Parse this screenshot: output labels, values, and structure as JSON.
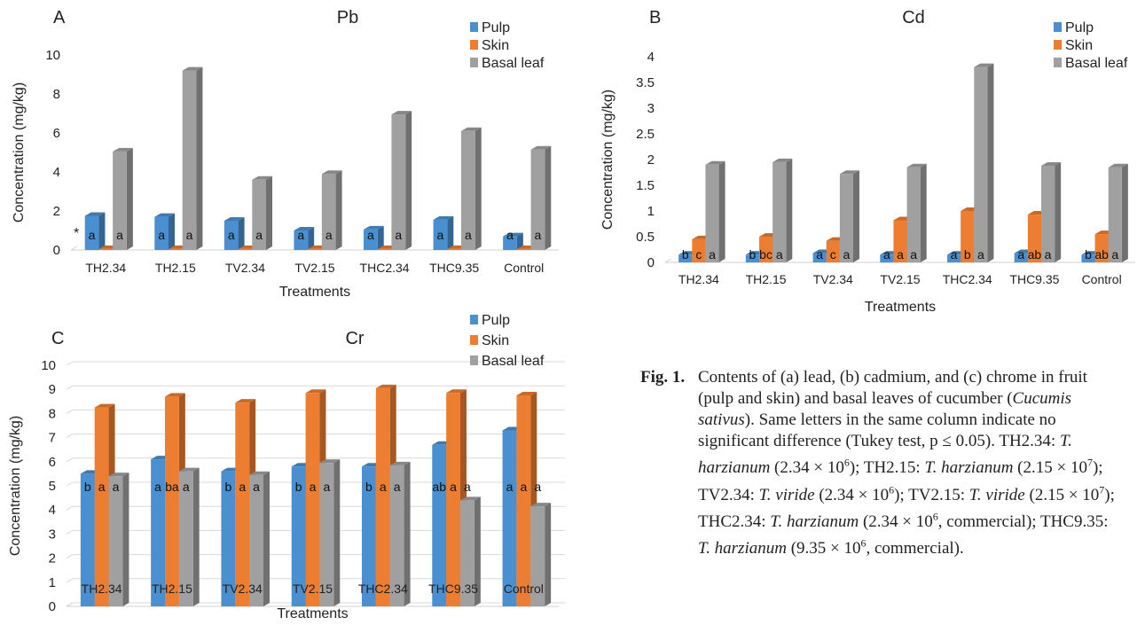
{
  "colors": {
    "pulp": "#4a8fd0",
    "skin": "#ed7d31",
    "basal": "#a0a0a0",
    "grid": "#d9d9d9"
  },
  "chart_data": [
    {
      "type": "bar",
      "panel": "A",
      "title": "Pb",
      "xlabel": "Treatments",
      "ylabel": "Concentration (mg/kg)",
      "categories": [
        "TH2.34",
        "TH2.15",
        "TV2.34",
        "TV2.15",
        "THC2.34",
        "THC9.35",
        "Control"
      ],
      "ylim": [
        0,
        10
      ],
      "yticks": [
        0,
        2,
        4,
        6,
        8,
        10
      ],
      "grid": false,
      "legend": "top-right",
      "annotation": "*",
      "series": [
        {
          "name": "Pulp",
          "values": [
            1.75,
            1.7,
            1.5,
            1.0,
            1.05,
            1.55,
            0.7
          ],
          "labels": [
            "a",
            "a",
            "a",
            "a",
            "a",
            "a",
            "a"
          ]
        },
        {
          "name": "Skin",
          "values": [
            0.05,
            0.05,
            0.05,
            0.05,
            0.05,
            0.05,
            0.05
          ],
          "labels": [
            "",
            "",
            "",
            "",
            "",
            "",
            ""
          ]
        },
        {
          "name": "Basal leaf",
          "values": [
            5.05,
            9.2,
            3.6,
            3.9,
            6.95,
            6.1,
            5.15
          ],
          "labels": [
            "a",
            "a",
            "a",
            "a",
            "a",
            "a",
            "a"
          ]
        }
      ]
    },
    {
      "type": "bar",
      "panel": "B",
      "title": "Cd",
      "xlabel": "Treatments",
      "ylabel": "Concentration (mg/kg)",
      "categories": [
        "TH2.34",
        "TH2.15",
        "TV2.34",
        "TV2.15",
        "THC2.34",
        "THC9.35",
        "Control"
      ],
      "ylim": [
        0,
        4
      ],
      "yticks": [
        0,
        0.5,
        1,
        1.5,
        2,
        2.5,
        3,
        3.5,
        4
      ],
      "grid": false,
      "legend": "top-right",
      "series": [
        {
          "name": "Pulp",
          "values": [
            0.15,
            0.15,
            0.18,
            0.15,
            0.15,
            0.18,
            0.15
          ],
          "labels": [
            "b",
            "b",
            "a",
            "a",
            "a",
            "a",
            "b"
          ]
        },
        {
          "name": "Skin",
          "values": [
            0.45,
            0.5,
            0.42,
            0.82,
            1.0,
            0.93,
            0.55
          ],
          "labels": [
            "c",
            "bc",
            "c",
            "a",
            "b",
            "ab",
            "ab"
          ]
        },
        {
          "name": "Basal leaf",
          "values": [
            1.9,
            1.95,
            1.72,
            1.85,
            3.8,
            1.88,
            1.85
          ],
          "labels": [
            "a",
            "a",
            "a",
            "a",
            "a",
            "a",
            "a"
          ]
        }
      ]
    },
    {
      "type": "bar",
      "panel": "C",
      "title": "Cr",
      "xlabel": "Treatments",
      "ylabel": "Concentration (mg/kg)",
      "categories": [
        "TH2.34",
        "TH2.15",
        "TV2.34",
        "TV2.15",
        "THC2.34",
        "THC9.35",
        "Control"
      ],
      "ylim": [
        0,
        10
      ],
      "yticks": [
        0,
        1,
        2,
        3,
        4,
        5,
        6,
        7,
        8,
        9,
        10
      ],
      "grid": true,
      "legend": "top-right",
      "series": [
        {
          "name": "Pulp",
          "values": [
            5.5,
            6.1,
            5.6,
            5.8,
            5.8,
            6.7,
            7.3
          ],
          "labels": [
            "b",
            "a",
            "b",
            "b",
            "b",
            "ab",
            "a"
          ]
        },
        {
          "name": "Skin",
          "values": [
            8.25,
            8.7,
            8.45,
            8.85,
            9.05,
            8.85,
            8.75
          ],
          "labels": [
            "a",
            "ba",
            "a",
            "a",
            "a",
            "a",
            "a"
          ]
        },
        {
          "name": "Basal leaf",
          "values": [
            5.4,
            5.6,
            5.45,
            5.95,
            5.85,
            4.4,
            4.15
          ],
          "labels": [
            "a",
            "a",
            "a",
            "a",
            "a",
            "a",
            "a"
          ]
        }
      ]
    }
  ],
  "caption": {
    "label": "Fig. 1.",
    "text": "Contents of (a) lead, (b) cadmium, and (c) chrome in fruit (pulp and skin) and basal leaves of cucumber (",
    "species": "Cucumis sativus",
    "text2": "). Same letters in the same column indicate no significant difference (Tukey test, p ≤ 0.05). TH2.34: ",
    "defs": [
      {
        "code": "TH2.34",
        "name": "T. harzianum",
        "conc": "(2.34 × 10",
        "exp": "6",
        "tail": ")"
      },
      {
        "code": "TH2.15",
        "name": "T. harzianum",
        "conc": "(2.15 × 10",
        "exp": "7",
        "tail": ")"
      },
      {
        "code": "TV2.34",
        "name": "T. viride",
        "conc": "(2.34 × 10",
        "exp": "6",
        "tail": ")"
      },
      {
        "code": "TV2.15",
        "name": "T. viride",
        "conc": "(2.15 × 10",
        "exp": "7",
        "tail": ")"
      },
      {
        "code": "THC2.34",
        "name": "T. harzianum",
        "conc": "(2.34 × 10",
        "exp": "6",
        "tail": ", commercial)"
      },
      {
        "code": "THC9.35",
        "name": "T. harzianum",
        "conc": "(9.35 × 10",
        "exp": "6",
        "tail": ", commercial)"
      }
    ]
  }
}
